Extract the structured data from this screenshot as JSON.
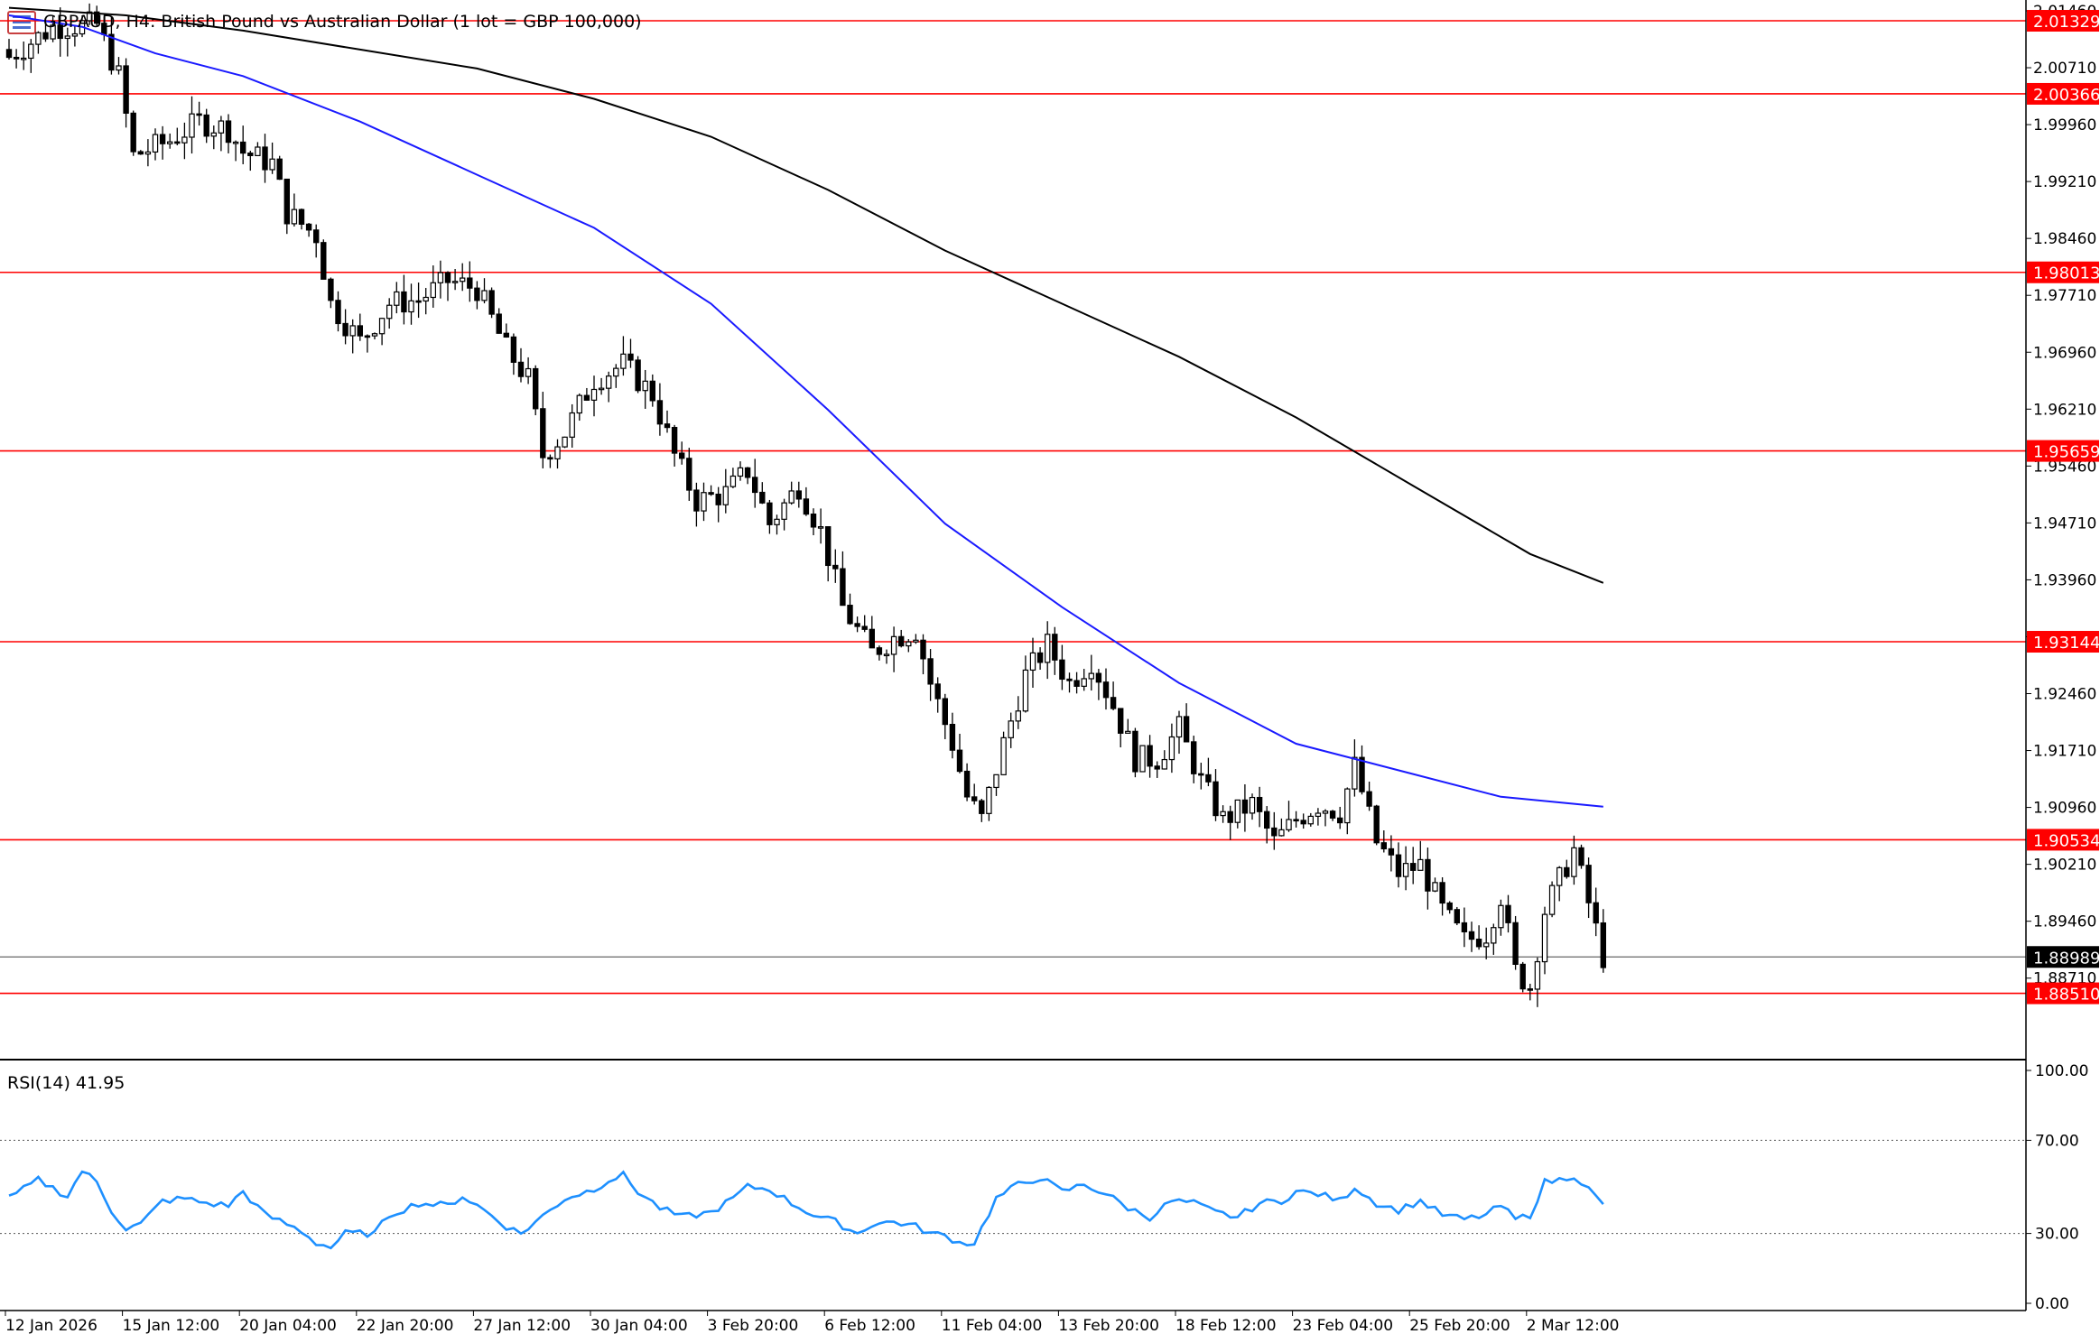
{
  "window": {
    "symbol_header": "GBPAUD, H4:  British Pound vs Australian Dollar (1 lot = GBP 100,000)",
    "rsi_label": "RSI(14) 41.95"
  },
  "colors": {
    "background": "#ffffff",
    "bull_candle": "#ffffff",
    "bear_candle": "#000000",
    "candle_outline": "#000000",
    "ma_fast": "#1a1aff",
    "ma_slow": "#000000",
    "level_lines": "#ff0000",
    "rsi_line": "#1e90ff",
    "current_price_line": "#808080"
  },
  "chart_data": {
    "type": "candlestick",
    "price_axis": {
      "ylim": [
        1.8785,
        2.0146
      ],
      "ticks": [
        "2.01460",
        "2.00710",
        "1.99960",
        "1.99210",
        "1.98460",
        "1.97710",
        "1.96960",
        "1.96210",
        "1.95460",
        "1.94710",
        "1.93960",
        "1.93210",
        "1.92460",
        "1.91710",
        "1.90960",
        "1.90210",
        "1.89460",
        "1.88710"
      ],
      "tick_values": [
        2.0146,
        2.0071,
        1.9996,
        1.9921,
        1.9846,
        1.9771,
        1.9696,
        1.9621,
        1.9546,
        1.9471,
        1.9396,
        1.9321,
        1.9246,
        1.9171,
        1.9096,
        1.9021,
        1.8946,
        1.8871
      ]
    },
    "horizontal_levels": [
      {
        "label": "2.01329",
        "value": 2.01329
      },
      {
        "label": "2.00366",
        "value": 2.00366
      },
      {
        "label": "1.98013",
        "value": 1.98013
      },
      {
        "label": "1.95659",
        "value": 1.95659
      },
      {
        "label": "1.93144",
        "value": 1.93144
      },
      {
        "label": "1.90534",
        "value": 1.90534
      },
      {
        "label": "1.88510",
        "value": 1.8851
      }
    ],
    "current_price": {
      "label": "1.88989",
      "value": 1.88989
    },
    "x_axis_labels": [
      "12 Jan 2026",
      "15 Jan 12:00",
      "20 Jan 04:00",
      "22 Jan 20:00",
      "27 Jan 12:00",
      "30 Jan 04:00",
      "3 Feb 20:00",
      "6 Feb 12:00",
      "11 Feb 04:00",
      "13 Feb 20:00",
      "18 Feb 12:00",
      "23 Feb 04:00",
      "25 Feb 20:00",
      "2 Mar 12:00"
    ],
    "x_label_bar_index": [
      0,
      16,
      32,
      48,
      64,
      80,
      96,
      112,
      128,
      144,
      160,
      176,
      192,
      208
    ],
    "close_path": [
      [
        0,
        2.0085
      ],
      [
        6,
        2.0125
      ],
      [
        12,
        2.0128
      ],
      [
        15,
        2.006
      ],
      [
        17,
        1.9955
      ],
      [
        22,
        1.9975
      ],
      [
        26,
        2.0
      ],
      [
        30,
        1.999
      ],
      [
        32,
        1.996
      ],
      [
        36,
        1.9945
      ],
      [
        38,
        1.988
      ],
      [
        42,
        1.985
      ],
      [
        44,
        1.976
      ],
      [
        48,
        1.971
      ],
      [
        52,
        1.976
      ],
      [
        56,
        1.9765
      ],
      [
        60,
        1.979
      ],
      [
        64,
        1.978
      ],
      [
        68,
        1.97
      ],
      [
        71,
        1.966
      ],
      [
        73,
        1.956
      ],
      [
        76,
        1.959
      ],
      [
        80,
        1.966
      ],
      [
        84,
        1.968
      ],
      [
        88,
        1.964
      ],
      [
        91,
        1.956
      ],
      [
        94,
        1.95
      ],
      [
        98,
        1.951
      ],
      [
        101,
        1.954
      ],
      [
        104,
        1.947
      ],
      [
        108,
        1.952
      ],
      [
        111,
        1.946
      ],
      [
        114,
        1.936
      ],
      [
        118,
        1.93
      ],
      [
        121,
        1.932
      ],
      [
        124,
        1.933
      ],
      [
        126,
        1.926
      ],
      [
        129,
        1.918
      ],
      [
        131,
        1.911
      ],
      [
        133,
        1.908
      ],
      [
        136,
        1.918
      ],
      [
        139,
        1.927
      ],
      [
        142,
        1.931
      ],
      [
        145,
        1.926
      ],
      [
        148,
        1.929
      ],
      [
        151,
        1.923
      ],
      [
        154,
        1.916
      ],
      [
        157,
        1.916
      ],
      [
        160,
        1.92
      ],
      [
        163,
        1.913
      ],
      [
        166,
        1.908
      ],
      [
        170,
        1.91
      ],
      [
        173,
        1.905
      ],
      [
        176,
        1.908
      ],
      [
        179,
        1.91
      ],
      [
        182,
        1.909
      ],
      [
        184,
        1.915
      ],
      [
        187,
        1.905
      ],
      [
        190,
        1.901
      ],
      [
        193,
        1.902
      ],
      [
        196,
        1.896
      ],
      [
        199,
        1.892
      ],
      [
        202,
        1.893
      ],
      [
        204,
        1.898
      ],
      [
        206,
        1.888
      ],
      [
        208,
        1.886
      ],
      [
        210,
        1.896
      ],
      [
        212,
        1.9
      ],
      [
        214,
        1.904
      ],
      [
        216,
        1.897
      ],
      [
        218,
        1.8899
      ]
    ],
    "ma_fast": {
      "name": "",
      "points": [
        [
          0,
          2.014
        ],
        [
          10,
          2.0125
        ],
        [
          20,
          2.009
        ],
        [
          32,
          2.006
        ],
        [
          48,
          2.0
        ],
        [
          64,
          1.993
        ],
        [
          80,
          1.986
        ],
        [
          96,
          1.976
        ],
        [
          112,
          1.962
        ],
        [
          128,
          1.947
        ],
        [
          144,
          1.936
        ],
        [
          160,
          1.926
        ],
        [
          176,
          1.918
        ],
        [
          192,
          1.914
        ],
        [
          204,
          1.911
        ],
        [
          218,
          1.9097
        ]
      ]
    },
    "ma_slow": {
      "name": "",
      "points": [
        [
          0,
          2.015
        ],
        [
          16,
          2.014
        ],
        [
          32,
          2.012
        ],
        [
          48,
          2.0095
        ],
        [
          64,
          2.007
        ],
        [
          80,
          2.003
        ],
        [
          96,
          1.998
        ],
        [
          112,
          1.991
        ],
        [
          128,
          1.983
        ],
        [
          144,
          1.976
        ],
        [
          160,
          1.969
        ],
        [
          176,
          1.961
        ],
        [
          192,
          1.952
        ],
        [
          208,
          1.943
        ],
        [
          218,
          1.9392
        ]
      ]
    },
    "rsi": {
      "label": "RSI(14) 41.95",
      "axis_ticks": [
        "100.00",
        "70.00",
        "30.00",
        "0.00"
      ],
      "axis_tick_values": [
        100,
        70,
        30,
        0
      ],
      "levels": [
        70,
        30
      ],
      "last_value": 41.95,
      "points": [
        [
          0,
          45
        ],
        [
          4,
          53
        ],
        [
          8,
          46
        ],
        [
          10,
          57
        ],
        [
          12,
          52
        ],
        [
          14,
          40
        ],
        [
          16,
          32
        ],
        [
          18,
          34
        ],
        [
          21,
          44
        ],
        [
          24,
          45
        ],
        [
          27,
          43
        ],
        [
          30,
          42
        ],
        [
          32,
          48
        ],
        [
          35,
          38
        ],
        [
          38,
          34
        ],
        [
          40,
          31
        ],
        [
          42,
          26
        ],
        [
          44,
          24
        ],
        [
          46,
          30
        ],
        [
          50,
          30
        ],
        [
          52,
          38
        ],
        [
          56,
          43
        ],
        [
          60,
          42
        ],
        [
          62,
          46
        ],
        [
          65,
          40
        ],
        [
          68,
          33
        ],
        [
          70,
          30
        ],
        [
          72,
          35
        ],
        [
          76,
          45
        ],
        [
          80,
          49
        ],
        [
          82,
          53
        ],
        [
          84,
          55
        ],
        [
          86,
          48
        ],
        [
          89,
          41
        ],
        [
          92,
          37
        ],
        [
          96,
          39
        ],
        [
          99,
          45
        ],
        [
          101,
          50
        ],
        [
          104,
          49
        ],
        [
          107,
          43
        ],
        [
          110,
          38
        ],
        [
          113,
          35
        ],
        [
          116,
          30
        ],
        [
          118,
          34
        ],
        [
          121,
          35
        ],
        [
          124,
          33
        ],
        [
          126,
          30
        ],
        [
          128,
          29
        ],
        [
          130,
          26
        ],
        [
          132,
          26
        ],
        [
          135,
          45
        ],
        [
          138,
          51
        ],
        [
          141,
          54
        ],
        [
          144,
          48
        ],
        [
          147,
          51
        ],
        [
          150,
          47
        ],
        [
          153,
          41
        ],
        [
          156,
          37
        ],
        [
          159,
          44
        ],
        [
          162,
          43
        ],
        [
          165,
          39
        ],
        [
          168,
          37
        ],
        [
          171,
          43
        ],
        [
          174,
          44
        ],
        [
          176,
          48
        ],
        [
          179,
          47
        ],
        [
          182,
          44
        ],
        [
          184,
          50
        ],
        [
          187,
          43
        ],
        [
          190,
          40
        ],
        [
          193,
          44
        ],
        [
          196,
          38
        ],
        [
          199,
          36
        ],
        [
          202,
          38
        ],
        [
          204,
          42
        ],
        [
          206,
          36
        ],
        [
          208,
          38
        ],
        [
          210,
          52
        ],
        [
          212,
          53
        ],
        [
          214,
          55
        ],
        [
          216,
          49
        ],
        [
          218,
          42
        ]
      ]
    }
  }
}
